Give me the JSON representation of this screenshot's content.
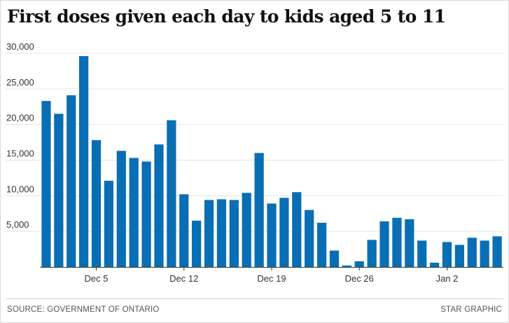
{
  "chart_data": {
    "type": "bar",
    "title": "First doses given each day to kids aged 5 to 11",
    "xlabel": "",
    "ylabel": "",
    "ylim": [
      0,
      30000
    ],
    "yticks": [
      5000,
      10000,
      15000,
      20000,
      25000,
      30000
    ],
    "ytick_labels": [
      "5,000",
      "10,000",
      "15,000",
      "20,000",
      "25,000",
      "30,000"
    ],
    "xtick_labels": [
      {
        "label": "Dec 5",
        "index": 4
      },
      {
        "label": "Dec 12",
        "index": 11
      },
      {
        "label": "Dec 19",
        "index": 18
      },
      {
        "label": "Dec 26",
        "index": 25
      },
      {
        "label": "Jan 2",
        "index": 32
      }
    ],
    "grid": true,
    "bar_color": "#0a6eb4",
    "values": [
      23300,
      21500,
      24100,
      29600,
      17800,
      12100,
      16300,
      15300,
      14800,
      17200,
      20600,
      10200,
      6500,
      9400,
      9500,
      9400,
      10400,
      16000,
      8900,
      9700,
      10500,
      8000,
      6200,
      2300,
      200,
      800,
      3800,
      6400,
      6900,
      6700,
      3700,
      600,
      3500,
      3100,
      4100,
      3700,
      4300
    ]
  },
  "footer": {
    "source": "SOURCE: GOVERNMENT OF ONTARIO",
    "credit": "STAR GRAPHIC"
  }
}
